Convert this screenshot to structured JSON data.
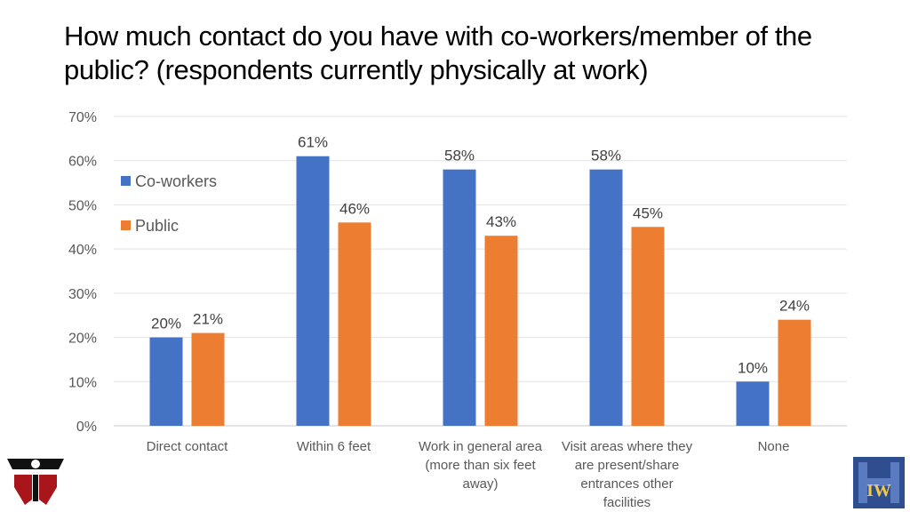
{
  "slide": {
    "title_line1": "How much contact do you have with co-workers/member of the",
    "title_line2": "public? (respondents currently physically at work)"
  },
  "chart_data": {
    "type": "bar",
    "categories": [
      [
        "Direct contact"
      ],
      [
        "Within 6 feet"
      ],
      [
        "Work in general area",
        "(more than six feet",
        "away)"
      ],
      [
        "Visit areas where they",
        "are present/share",
        "entrances other",
        "facilities"
      ],
      [
        "None"
      ]
    ],
    "series": [
      {
        "name": "Co-workers",
        "color": "#4472C4",
        "values": [
          20,
          61,
          58,
          58,
          10
        ],
        "labels": [
          "20%",
          "61%",
          "58%",
          "58%",
          "10%"
        ]
      },
      {
        "name": "Public",
        "color": "#ED7D31",
        "values": [
          21,
          46,
          43,
          45,
          24
        ],
        "labels": [
          "21%",
          "46%",
          "43%",
          "45%",
          "24%"
        ]
      }
    ],
    "yticks": [
      "0%",
      "10%",
      "20%",
      "30%",
      "40%",
      "50%",
      "60%",
      "70%"
    ],
    "ylim": [
      0,
      70
    ],
    "grid": true,
    "legend": "top-left inside plot"
  },
  "logos": {
    "left": "red-black-logo",
    "right": "iw-logo",
    "right_text": "IW"
  }
}
